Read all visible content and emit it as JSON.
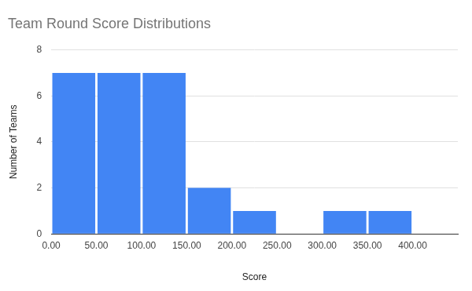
{
  "chart_data": {
    "type": "histogram",
    "title": "Team Round Score Distributions",
    "x_label": "Score",
    "y_label": "Number of Teams",
    "bins": [
      0,
      50,
      100,
      150,
      200,
      250,
      300,
      350,
      400
    ],
    "values": [
      7,
      7,
      7,
      2,
      1,
      0,
      1,
      1
    ],
    "color": "#4285f4",
    "xlim": [
      0,
      450
    ],
    "xticks": [
      {
        "value": 0,
        "label": "0.00"
      },
      {
        "value": 50,
        "label": "50.00"
      },
      {
        "value": 100,
        "label": "100.00"
      },
      {
        "value": 150,
        "label": "150.00"
      },
      {
        "value": 200,
        "label": "200.00"
      },
      {
        "value": 250,
        "label": "250.00"
      },
      {
        "value": 300,
        "label": "300.00"
      },
      {
        "value": 350,
        "label": "350.00"
      },
      {
        "value": 400,
        "label": "400.00"
      }
    ],
    "ylim": [
      0,
      8
    ],
    "yticks": [
      0,
      2,
      4,
      6,
      8
    ],
    "grid": true
  }
}
